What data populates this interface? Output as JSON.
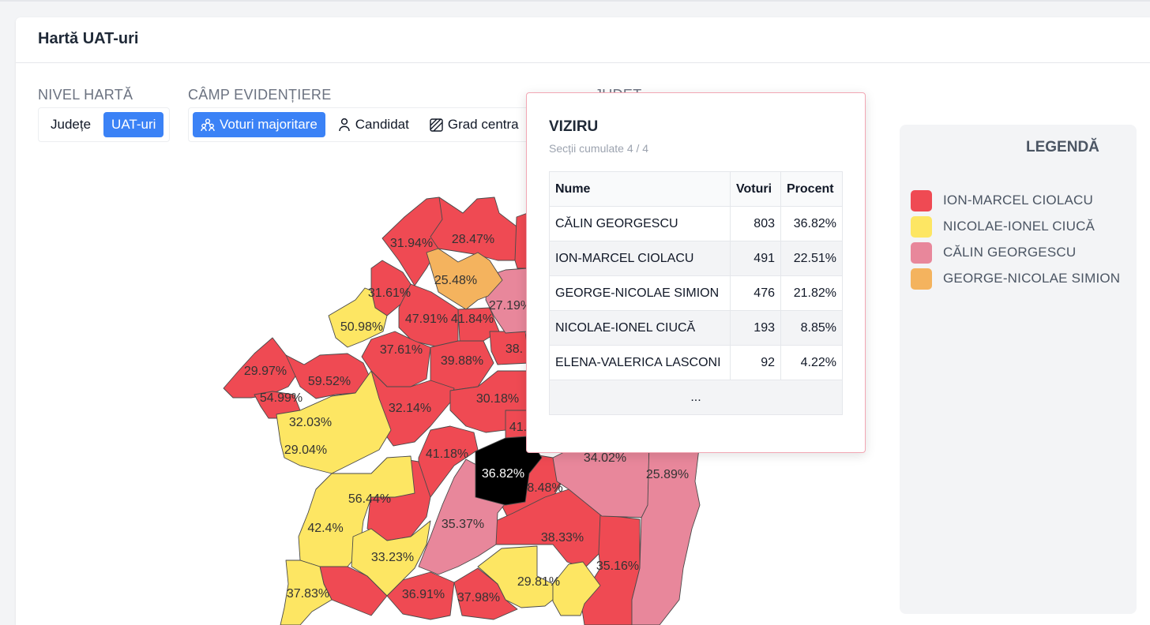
{
  "page": {
    "title": "Hartă UAT-uri"
  },
  "controls": {
    "nivel_label": "NIVEL HARTĂ",
    "nivel_options": [
      "Județe",
      "UAT-uri"
    ],
    "nivel_selected": "UAT-uri",
    "camp_label": "CÂMP EVIDENȚIERE",
    "camp_options": [
      {
        "label": "Voturi majoritare",
        "icon": "people-group-icon",
        "active": true
      },
      {
        "label": "Candidat",
        "icon": "person-icon",
        "active": false
      },
      {
        "label": "Grad centra",
        "icon": "hatch-square-icon",
        "active": false
      }
    ],
    "judet_label": "JUDEȚ"
  },
  "legend": {
    "title": "LEGENDĂ",
    "items": [
      {
        "label": "ION-MARCEL CIOLACU",
        "color": "#ef4a53"
      },
      {
        "label": "NICOLAE-IONEL CIUCĂ",
        "color": "#fde663"
      },
      {
        "label": "CĂLIN GEORGESCU",
        "color": "#e8879b"
      },
      {
        "label": "GEORGE-NICOLAE SIMION",
        "color": "#f4b35e"
      }
    ]
  },
  "tooltip": {
    "title": "VIZIRU",
    "subtitle": "Secții cumulate 4 / 4",
    "headers": [
      "Nume",
      "Voturi",
      "Procent"
    ],
    "rows": [
      {
        "name": "CĂLIN GEORGESCU",
        "votes": "803",
        "percent": "36.82%"
      },
      {
        "name": "ION-MARCEL CIOLACU",
        "votes": "491",
        "percent": "22.51%"
      },
      {
        "name": "GEORGE-NICOLAE SIMION",
        "votes": "476",
        "percent": "21.82%"
      },
      {
        "name": "NICOLAE-IONEL CIUCĂ",
        "votes": "193",
        "percent": "8.85%"
      },
      {
        "name": "ELENA-VALERICA LASCONI",
        "votes": "92",
        "percent": "4.22%"
      }
    ],
    "more": "..."
  },
  "map": {
    "highlighted_region": "VIZIRU",
    "region_labels": [
      "31.94%",
      "28.47%",
      "25.48%",
      "31.61%",
      "27.19%",
      "50.98%",
      "47.91%",
      "41.84%",
      "37.61%",
      "38.",
      "29.97%",
      "59.52%",
      "39.88%",
      "54.99%",
      "32.14%",
      "30.18%",
      "32.03%",
      "41.",
      "29.04%",
      "41.18%",
      "36.82%",
      "34.02%",
      "25.89%",
      "56.44%",
      "8.48%",
      "35.37%",
      "42.4%",
      "38.33%",
      "33.23%",
      "35.16%",
      "37.83%",
      "29.81%",
      "36.91%",
      "37.98%"
    ]
  }
}
